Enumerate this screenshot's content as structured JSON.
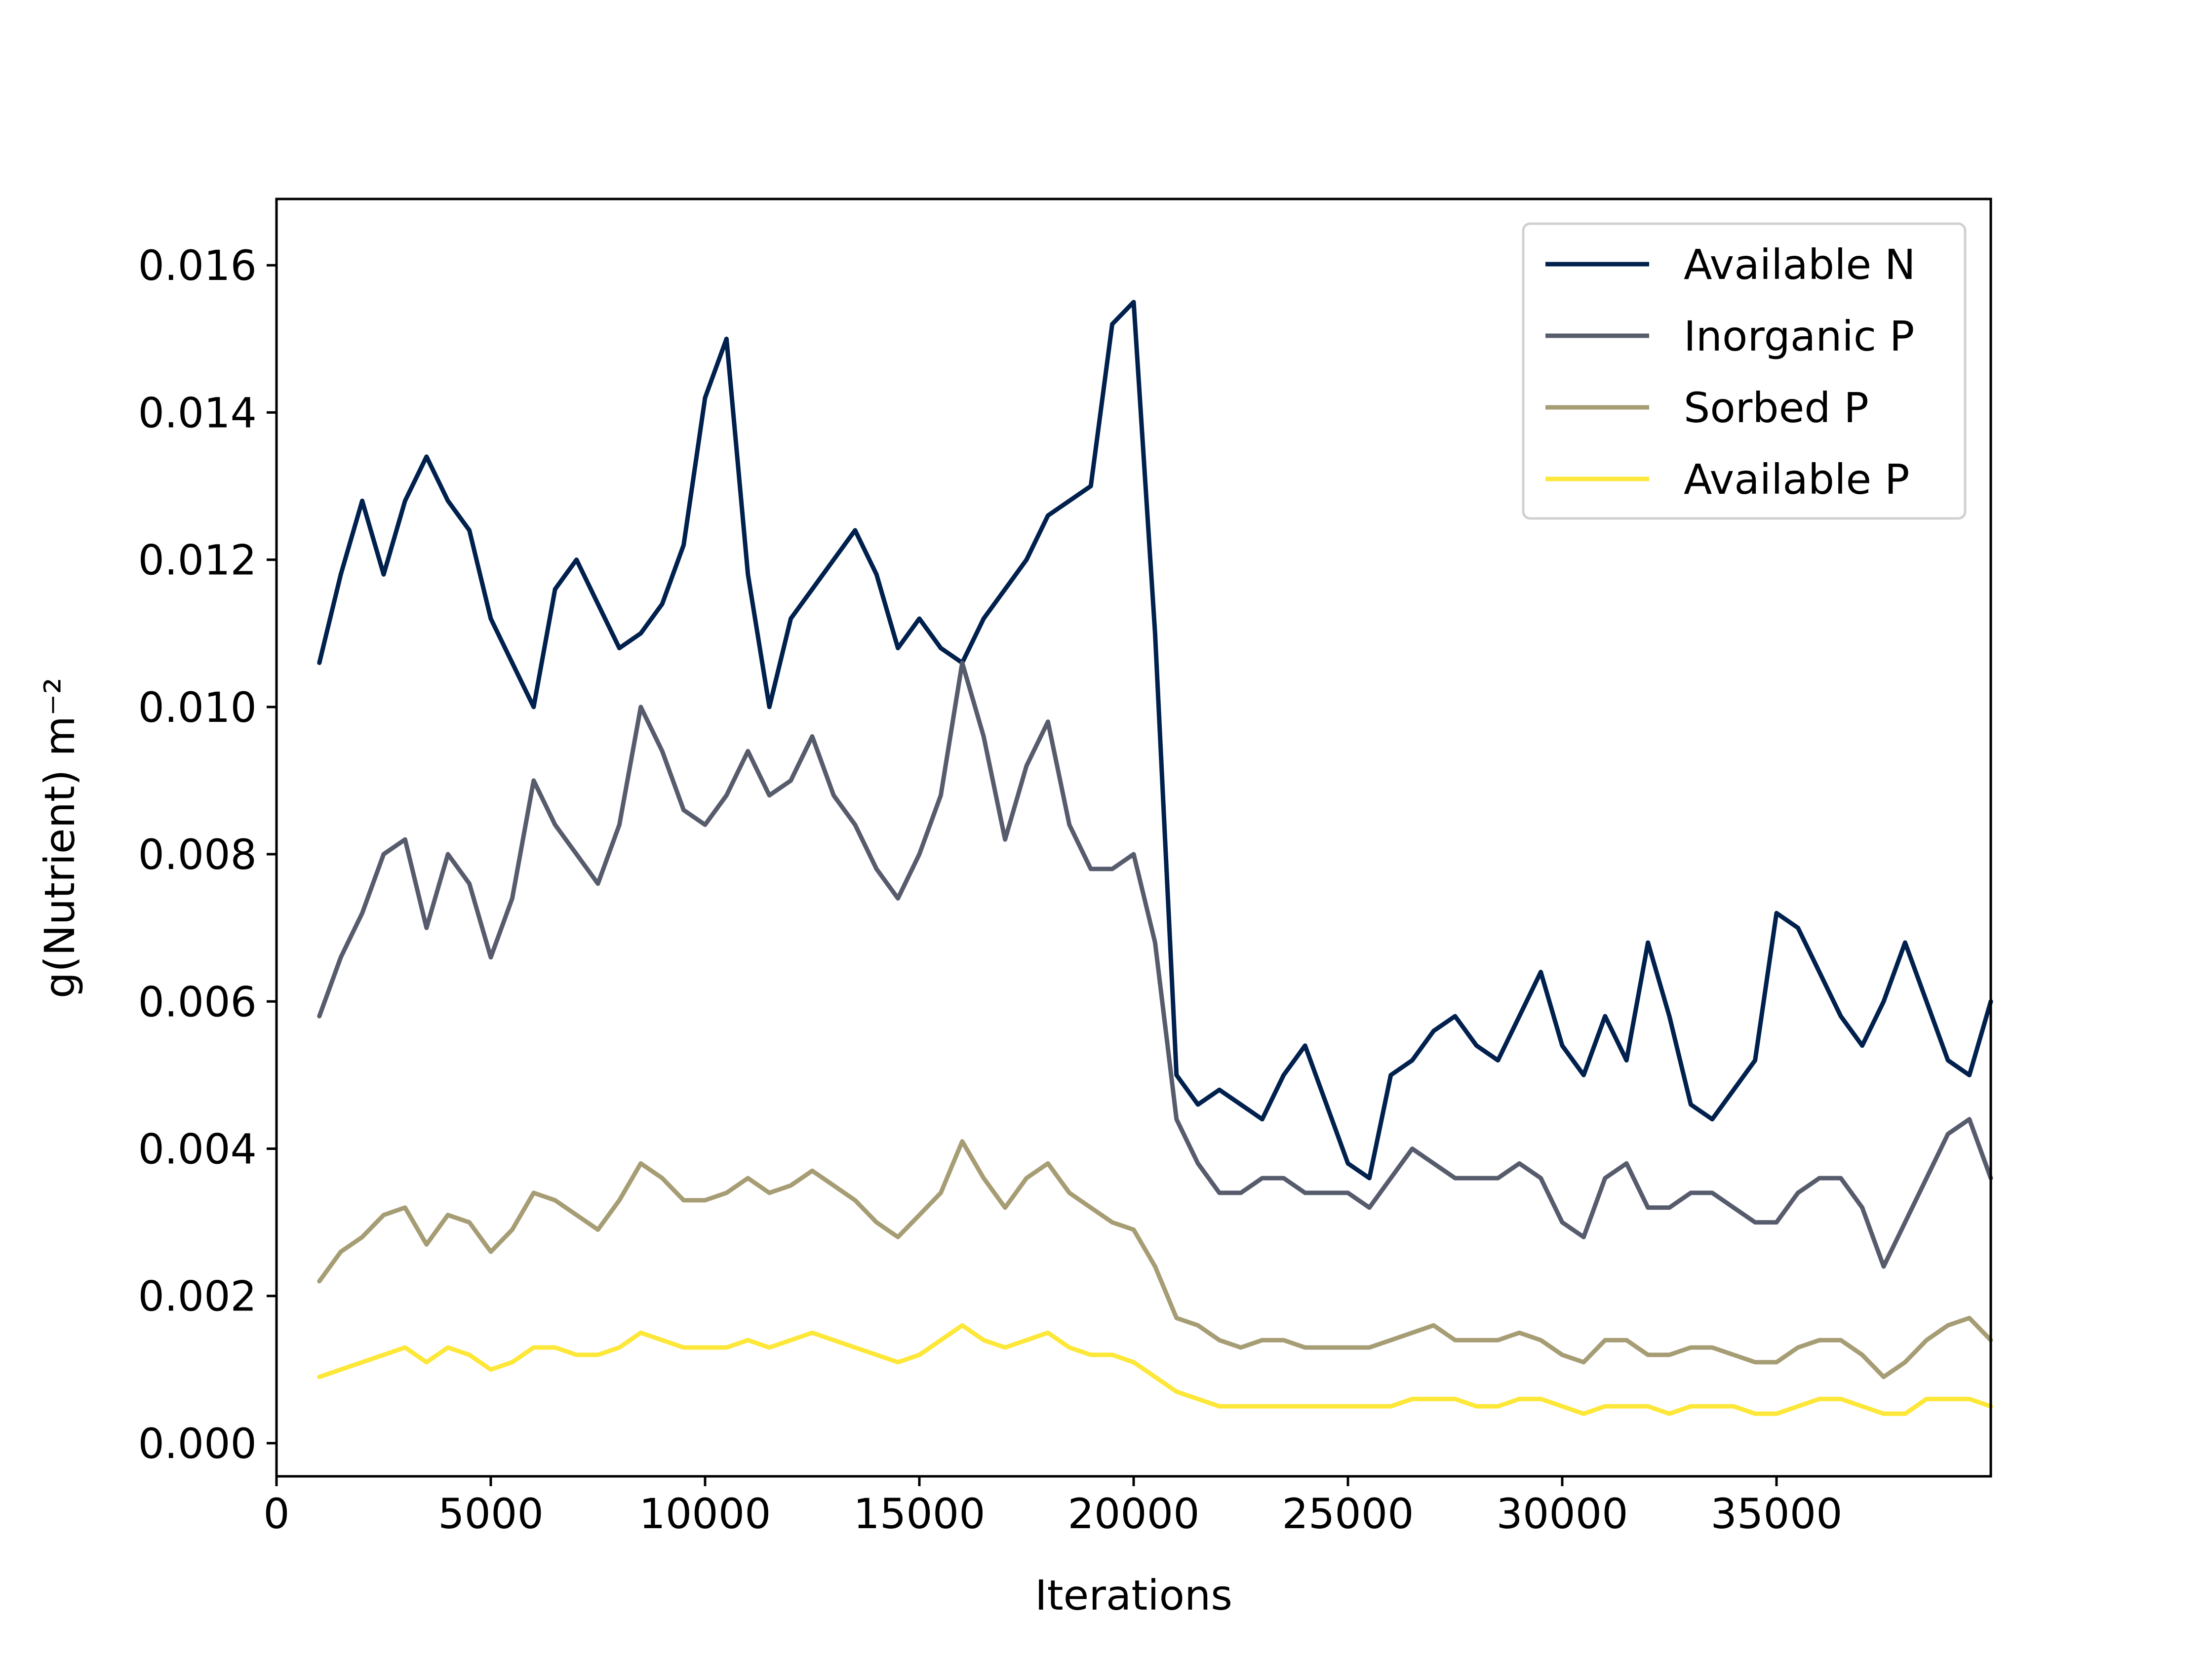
{
  "chart_data": {
    "type": "line",
    "title": "",
    "xlabel": "Iterations",
    "ylabel": "g(Nutrient) m⁻²",
    "xlim": [
      0,
      40000
    ],
    "ylim": [
      -0.00045,
      0.0169
    ],
    "x_ticks": [
      0,
      5000,
      10000,
      15000,
      20000,
      25000,
      30000,
      35000
    ],
    "x_tick_labels": [
      "0",
      "5000",
      "10000",
      "15000",
      "20000",
      "25000",
      "30000",
      "35000"
    ],
    "y_ticks": [
      0.0,
      0.002,
      0.004,
      0.006,
      0.008,
      0.01,
      0.012,
      0.014,
      0.016
    ],
    "y_tick_labels": [
      "0.000",
      "0.002",
      "0.004",
      "0.006",
      "0.008",
      "0.010",
      "0.012",
      "0.014",
      "0.016"
    ],
    "grid": false,
    "legend_position": "top-right",
    "x": [
      1000,
      1500,
      2000,
      2500,
      3000,
      3500,
      4000,
      4500,
      5000,
      5500,
      6000,
      6500,
      7000,
      7500,
      8000,
      8500,
      9000,
      9500,
      10000,
      10500,
      11000,
      11500,
      12000,
      12500,
      13000,
      13500,
      14000,
      14500,
      15000,
      15500,
      16000,
      16500,
      17000,
      17500,
      18000,
      18500,
      19000,
      19500,
      20000,
      20500,
      21000,
      21500,
      22000,
      22500,
      23000,
      23500,
      24000,
      24500,
      25000,
      25500,
      26000,
      26500,
      27000,
      27500,
      28000,
      28500,
      29000,
      29500,
      30000,
      30500,
      31000,
      31500,
      32000,
      32500,
      33000,
      33500,
      34000,
      34500,
      35000,
      35500,
      36000,
      36500,
      37000,
      37500,
      38000,
      38500,
      39000,
      39500,
      40000
    ],
    "series": [
      {
        "name": "Available N",
        "color": "#00204d",
        "values": [
          0.0106,
          0.0118,
          0.0128,
          0.0118,
          0.0128,
          0.0134,
          0.0128,
          0.0124,
          0.0112,
          0.0106,
          0.01,
          0.0116,
          0.012,
          0.0114,
          0.0108,
          0.011,
          0.0114,
          0.0122,
          0.0142,
          0.015,
          0.0118,
          0.01,
          0.0112,
          0.0116,
          0.012,
          0.0124,
          0.0118,
          0.0108,
          0.0112,
          0.0108,
          0.0106,
          0.0112,
          0.0116,
          0.012,
          0.0126,
          0.0128,
          0.013,
          0.0152,
          0.0155,
          0.011,
          0.005,
          0.0046,
          0.0048,
          0.0046,
          0.0044,
          0.005,
          0.0054,
          0.0046,
          0.0038,
          0.0036,
          0.005,
          0.0052,
          0.0056,
          0.0058,
          0.0054,
          0.0052,
          0.0058,
          0.0064,
          0.0054,
          0.005,
          0.0058,
          0.0052,
          0.0068,
          0.0058,
          0.0046,
          0.0044,
          0.0048,
          0.0052,
          0.0072,
          0.007,
          0.0064,
          0.0058,
          0.0054,
          0.006,
          0.0068,
          0.006,
          0.0052,
          0.005,
          0.006
        ]
      },
      {
        "name": "Inorganic P",
        "color": "#575c6d",
        "values": [
          0.0058,
          0.0066,
          0.0072,
          0.008,
          0.0082,
          0.007,
          0.008,
          0.0076,
          0.0066,
          0.0074,
          0.009,
          0.0084,
          0.008,
          0.0076,
          0.0084,
          0.01,
          0.0094,
          0.0086,
          0.0084,
          0.0088,
          0.0094,
          0.0088,
          0.009,
          0.0096,
          0.0088,
          0.0084,
          0.0078,
          0.0074,
          0.008,
          0.0088,
          0.0106,
          0.0096,
          0.0082,
          0.0092,
          0.0098,
          0.0084,
          0.0078,
          0.0078,
          0.008,
          0.0068,
          0.0044,
          0.0038,
          0.0034,
          0.0034,
          0.0036,
          0.0036,
          0.0034,
          0.0034,
          0.0034,
          0.0032,
          0.0036,
          0.004,
          0.0038,
          0.0036,
          0.0036,
          0.0036,
          0.0038,
          0.0036,
          0.003,
          0.0028,
          0.0036,
          0.0038,
          0.0032,
          0.0032,
          0.0034,
          0.0034,
          0.0032,
          0.003,
          0.003,
          0.0034,
          0.0036,
          0.0036,
          0.0032,
          0.0024,
          0.003,
          0.0036,
          0.0042,
          0.0044,
          0.0036
        ]
      },
      {
        "name": "Sorbed P",
        "color": "#a69d75",
        "values": [
          0.0022,
          0.0026,
          0.0028,
          0.0031,
          0.0032,
          0.0027,
          0.0031,
          0.003,
          0.0026,
          0.0029,
          0.0034,
          0.0033,
          0.0031,
          0.0029,
          0.0033,
          0.0038,
          0.0036,
          0.0033,
          0.0033,
          0.0034,
          0.0036,
          0.0034,
          0.0035,
          0.0037,
          0.0035,
          0.0033,
          0.003,
          0.0028,
          0.0031,
          0.0034,
          0.0041,
          0.0036,
          0.0032,
          0.0036,
          0.0038,
          0.0034,
          0.0032,
          0.003,
          0.0029,
          0.0024,
          0.0017,
          0.0016,
          0.0014,
          0.0013,
          0.0014,
          0.0014,
          0.0013,
          0.0013,
          0.0013,
          0.0013,
          0.0014,
          0.0015,
          0.0016,
          0.0014,
          0.0014,
          0.0014,
          0.0015,
          0.0014,
          0.0012,
          0.0011,
          0.0014,
          0.0014,
          0.0012,
          0.0012,
          0.0013,
          0.0013,
          0.0012,
          0.0011,
          0.0011,
          0.0013,
          0.0014,
          0.0014,
          0.0012,
          0.0009,
          0.0011,
          0.0014,
          0.0016,
          0.0017,
          0.0014
        ]
      },
      {
        "name": "Available P",
        "color": "#fde738",
        "values": [
          0.0009,
          0.001,
          0.0011,
          0.0012,
          0.0013,
          0.0011,
          0.0013,
          0.0012,
          0.001,
          0.0011,
          0.0013,
          0.0013,
          0.0012,
          0.0012,
          0.0013,
          0.0015,
          0.0014,
          0.0013,
          0.0013,
          0.0013,
          0.0014,
          0.0013,
          0.0014,
          0.0015,
          0.0014,
          0.0013,
          0.0012,
          0.0011,
          0.0012,
          0.0014,
          0.0016,
          0.0014,
          0.0013,
          0.0014,
          0.0015,
          0.0013,
          0.0012,
          0.0012,
          0.0011,
          0.0009,
          0.0007,
          0.0006,
          0.0005,
          0.0005,
          0.0005,
          0.0005,
          0.0005,
          0.0005,
          0.0005,
          0.0005,
          0.0005,
          0.0006,
          0.0006,
          0.0006,
          0.0005,
          0.0005,
          0.0006,
          0.0006,
          0.0005,
          0.0004,
          0.0005,
          0.0005,
          0.0005,
          0.0004,
          0.0005,
          0.0005,
          0.0005,
          0.0004,
          0.0004,
          0.0005,
          0.0006,
          0.0006,
          0.0005,
          0.0004,
          0.0004,
          0.0006,
          0.0006,
          0.0006,
          0.0005
        ]
      }
    ]
  }
}
